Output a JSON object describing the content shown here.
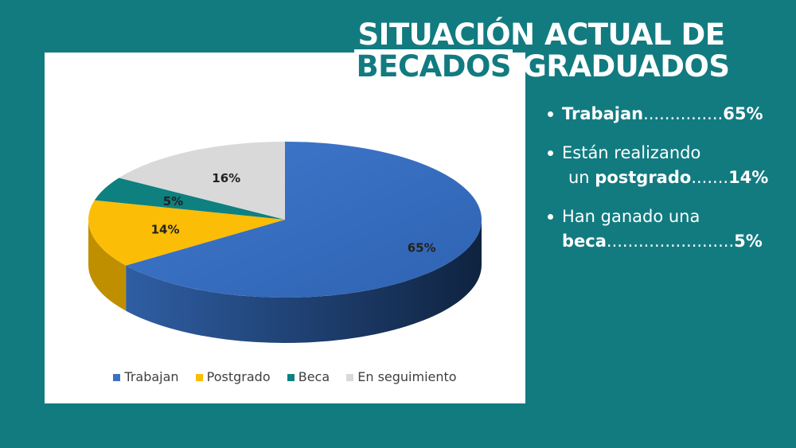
{
  "title": {
    "line1": "SITUACIÓN ACTUAL DE",
    "line2_highlight": "BECADOS",
    "line2_rest": "GRADUADOS"
  },
  "stats": [
    {
      "bold1": "Trabajan",
      "dots": "...............",
      "value": "65%"
    },
    {
      "text1": "Están realizando",
      "text2": "un ",
      "bold1": "postgrado",
      "dots": ".......",
      "value": "14%"
    },
    {
      "text1": "Han ganado una",
      "bold1": "beca",
      "dots": "........................",
      "value": "5%"
    }
  ],
  "colors": {
    "background": "#127b80",
    "Trabajan": "#3b72c2",
    "Postgrado": "#fbbd06",
    "Beca": "#0e8080",
    "En seguimiento": "#d9d9d9"
  },
  "chart_data": {
    "type": "pie",
    "style": "3d",
    "categories": [
      "Trabajan",
      "Postgrado",
      "Beca",
      "En seguimiento"
    ],
    "values": [
      65,
      14,
      5,
      16
    ],
    "data_labels": [
      "65%",
      "14%",
      "5%",
      "16%"
    ],
    "legend_position": "bottom"
  }
}
